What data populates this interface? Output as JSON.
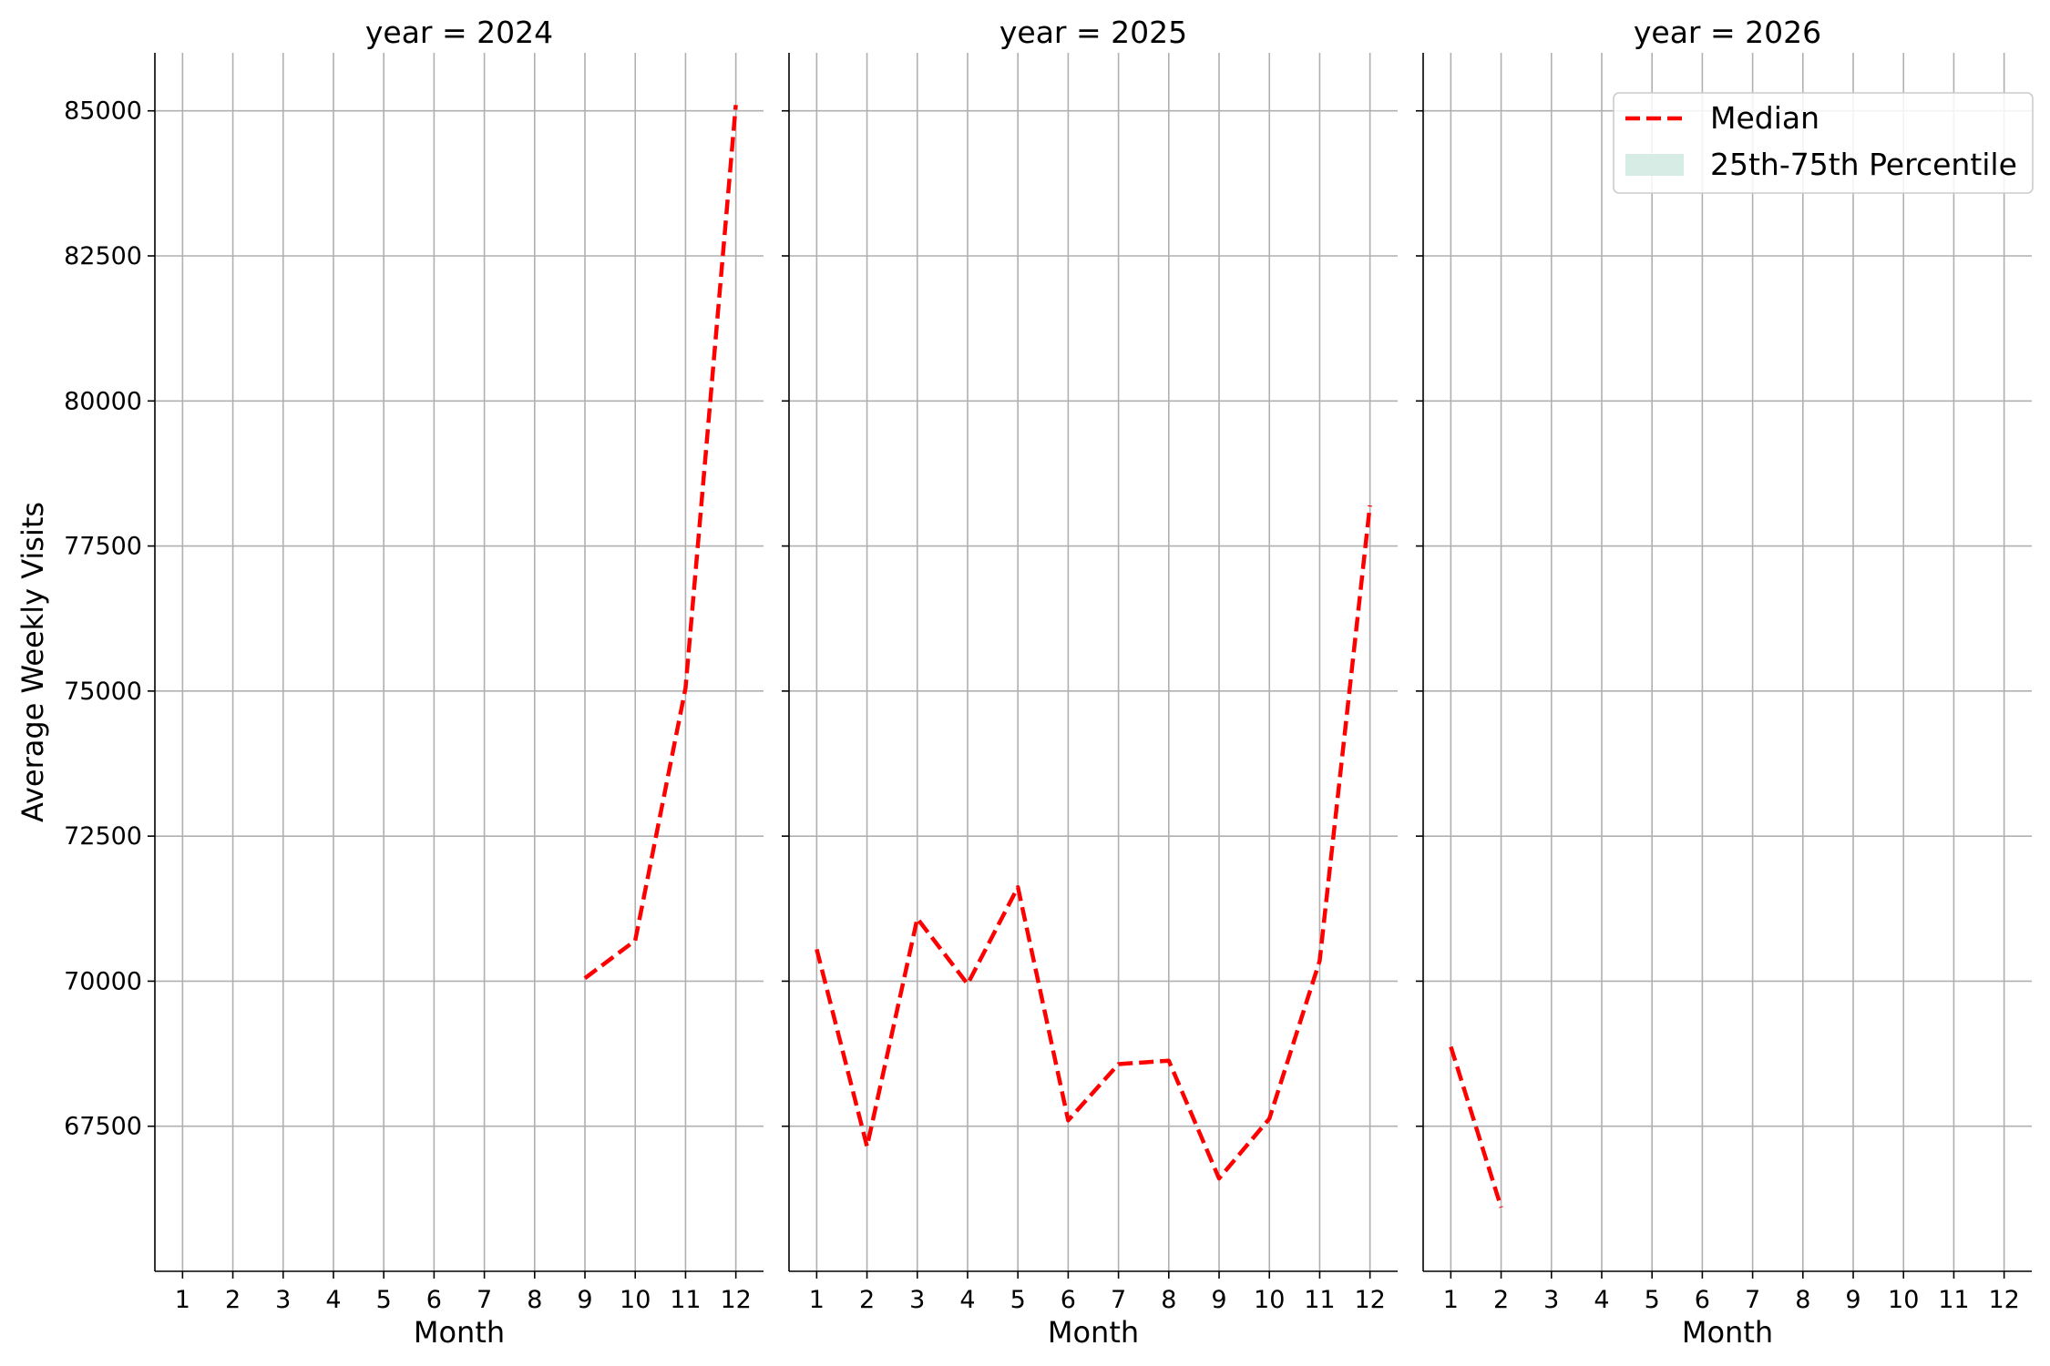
{
  "chart_data": {
    "type": "line",
    "ylabel": "Average Weekly Visits",
    "ylim": [
      65000,
      86000
    ],
    "yticks": [
      67500,
      70000,
      72500,
      75000,
      77500,
      80000,
      82500,
      85000
    ],
    "xticks": [
      1,
      2,
      3,
      4,
      5,
      6,
      7,
      8,
      9,
      10,
      11,
      12
    ],
    "xlim": [
      0.45,
      12.55
    ],
    "grid": true,
    "colors": {
      "median": "#ff0000",
      "band": "#d6ece4"
    },
    "legend": {
      "placement": "top-right",
      "median_label": "Median",
      "band_label": "25th-75th Percentile"
    },
    "panels": [
      {
        "title": "year = 2024",
        "xlabel": "Month",
        "series": [
          {
            "name": "Median",
            "x": [
              9,
              10,
              11,
              12
            ],
            "y": [
              70050,
              70700,
              75050,
              85100
            ]
          }
        ]
      },
      {
        "title": "year = 2025",
        "xlabel": "Month",
        "series": [
          {
            "name": "Median",
            "x": [
              1,
              2,
              3,
              4,
              5,
              6,
              7,
              8,
              9,
              10,
              11,
              12
            ],
            "y": [
              70550,
              67150,
              71080,
              69950,
              71620,
              67600,
              68570,
              68630,
              66600,
              67630,
              70350,
              78200
            ]
          }
        ]
      },
      {
        "title": "year = 2026",
        "xlabel": "Month",
        "series": [
          {
            "name": "Median",
            "x": [
              1,
              2
            ],
            "y": [
              68870,
              66100
            ]
          }
        ]
      }
    ]
  }
}
